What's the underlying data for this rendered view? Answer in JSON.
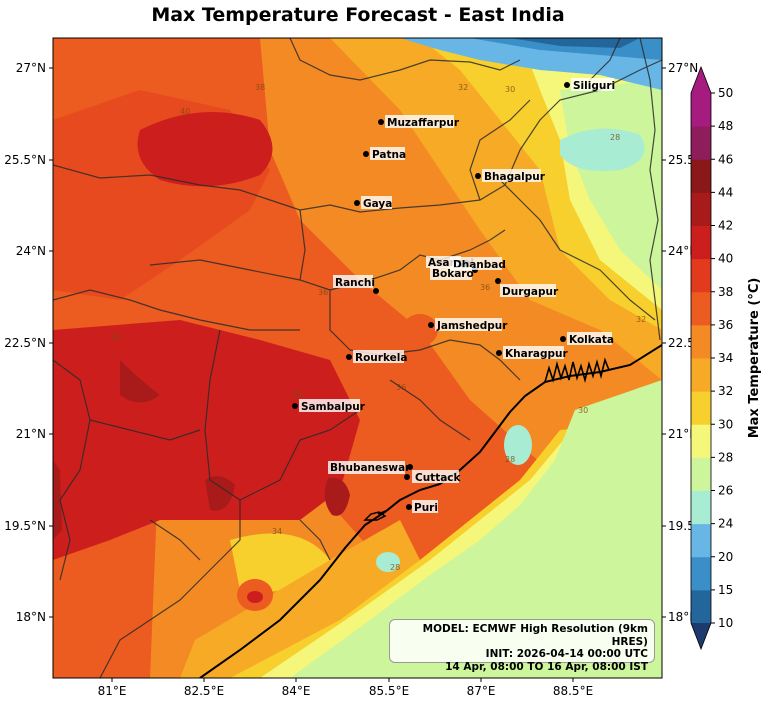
{
  "title": "Max Temperature Forecast - East India",
  "info": {
    "line1": "MODEL: ECMWF High Resolution (9km HRES)",
    "line2": "INIT: 2026-04-14 00:00 UTC",
    "line3": "14 Apr, 08:00 TO 16 Apr, 08:00 IST"
  },
  "colorbar": {
    "title": "Max Temperature (°C)",
    "ticks": [
      "10",
      "15",
      "20",
      "24",
      "26",
      "28",
      "30",
      "32",
      "34",
      "36",
      "38",
      "40",
      "42",
      "44",
      "46",
      "48",
      "50"
    ],
    "colors": [
      "#1c3a6e",
      "#23669c",
      "#3a8fc8",
      "#67b6e6",
      "#a8ecd4",
      "#ccf59c",
      "#f5f77a",
      "#f8d02e",
      "#f6aa26",
      "#f38a24",
      "#ec5b1f",
      "#e23a1d",
      "#cc1f1d",
      "#a91b1b",
      "#8a1818",
      "#8e1d5c",
      "#a61b7f"
    ]
  },
  "axes": {
    "x_ticks": [
      "81°E",
      "82.5°E",
      "84°E",
      "85.5°E",
      "87°E",
      "88.5°E"
    ],
    "y_ticks_left": [
      "27°N",
      "25.5°N",
      "24°N",
      "22.5°N",
      "21°N",
      "19.5°N",
      "18°N"
    ],
    "y_ticks_right": [
      "27°N",
      "25.5",
      "24°N",
      "22.5",
      "21°N",
      "19.5",
      "18°N"
    ]
  },
  "cities": [
    {
      "name": "Siliguri"
    },
    {
      "name": "Muzaffarpur"
    },
    {
      "name": "Patna"
    },
    {
      "name": "Bhagalpur"
    },
    {
      "name": "Gaya"
    },
    {
      "name": "Asansol"
    },
    {
      "name": "Dhanbad"
    },
    {
      "name": "Bokaro"
    },
    {
      "name": "Ranchi"
    },
    {
      "name": "Durgapur"
    },
    {
      "name": "Jamshedpur"
    },
    {
      "name": "Kolkata"
    },
    {
      "name": "Kharagpur"
    },
    {
      "name": "Rourkela"
    },
    {
      "name": "Sambalpur"
    },
    {
      "name": "Bhubaneswar"
    },
    {
      "name": "Cuttack"
    },
    {
      "name": "Puri"
    }
  ]
}
